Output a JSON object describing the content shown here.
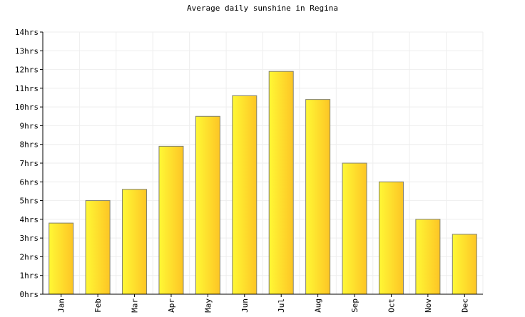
{
  "chart_data": {
    "type": "bar",
    "title": "Average daily sunshine in Regina",
    "xlabel": "",
    "ylabel": "",
    "categories": [
      "Jan",
      "Feb",
      "Mar",
      "Apr",
      "May",
      "Jun",
      "Jul",
      "Aug",
      "Sep",
      "Oct",
      "Nov",
      "Dec"
    ],
    "values": [
      3.8,
      5.0,
      5.6,
      7.9,
      9.5,
      10.6,
      11.9,
      10.4,
      7.0,
      6.0,
      4.0,
      3.2
    ],
    "ylim": [
      0,
      14
    ],
    "y_ticks": [
      "0hrs",
      "1hrs",
      "2hrs",
      "3hrs",
      "4hrs",
      "5hrs",
      "6hrs",
      "7hrs",
      "8hrs",
      "9hrs",
      "10hrs",
      "11hrs",
      "12hrs",
      "13hrs",
      "14hrs"
    ],
    "grid": true,
    "colors": {
      "bar_light": "#fff835",
      "bar_dark": "#fdc525",
      "bar_edge": "#808070",
      "axis": "#000000",
      "grid": "#eeeeee"
    }
  }
}
